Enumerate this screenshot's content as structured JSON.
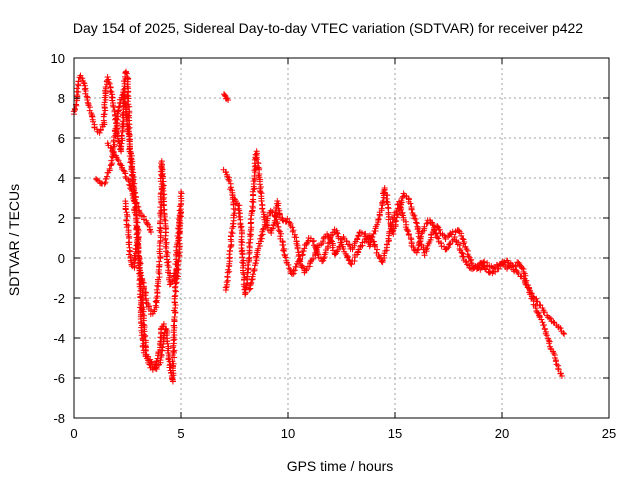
{
  "chart_data": {
    "type": "scatter",
    "title": "Day 154 of 2025, Sidereal Day-to-day VTEC variation (SDTVAR) for receiver p422",
    "xlabel": "GPS time / hours",
    "ylabel": "SDTVAR / TECUs",
    "xlim": [
      0,
      25
    ],
    "ylim": [
      -8,
      10
    ],
    "xticks": [
      0,
      5,
      10,
      15,
      20,
      25
    ],
    "yticks": [
      -8,
      -6,
      -4,
      -2,
      0,
      2,
      4,
      6,
      8,
      10
    ],
    "grid": true,
    "marker": "+",
    "color": "#ff0000",
    "series": [
      {
        "name": "SDTVAR",
        "trace": [
          [
            0.0,
            7.2
          ],
          [
            0.1,
            7.6
          ],
          [
            0.2,
            8.8
          ],
          [
            0.3,
            9.1
          ],
          [
            0.45,
            8.9
          ],
          [
            0.6,
            8.0
          ],
          [
            0.8,
            7.2
          ],
          [
            1.0,
            6.5
          ],
          [
            1.2,
            6.3
          ],
          [
            1.4,
            6.7
          ],
          [
            1.5,
            8.6
          ],
          [
            1.6,
            9.0
          ],
          [
            1.7,
            8.6
          ],
          [
            1.8,
            7.8
          ],
          [
            1.9,
            7.2
          ],
          [
            2.0,
            6.6
          ],
          [
            2.1,
            5.8
          ],
          [
            2.2,
            5.3
          ],
          [
            2.3,
            7.0
          ],
          [
            2.35,
            8.5
          ],
          [
            2.4,
            9.3
          ],
          [
            2.5,
            9.2
          ],
          [
            2.55,
            7.5
          ],
          [
            2.6,
            6.0
          ],
          [
            2.7,
            4.8
          ],
          [
            2.8,
            3.7
          ],
          [
            2.9,
            2.6
          ],
          [
            3.0,
            1.2
          ],
          [
            3.05,
            -0.5
          ],
          [
            3.1,
            -2.0
          ],
          [
            3.15,
            -3.2
          ],
          [
            3.25,
            -4.6
          ],
          [
            3.4,
            -5.0
          ],
          [
            3.55,
            -5.4
          ],
          [
            3.7,
            -5.6
          ],
          [
            3.85,
            -5.5
          ],
          [
            4.0,
            -5.3
          ],
          [
            4.1,
            -4.8
          ],
          [
            4.2,
            -4.0
          ],
          [
            4.3,
            -3.5
          ],
          [
            4.4,
            -4.5
          ],
          [
            4.5,
            -5.6
          ],
          [
            4.6,
            -6.2
          ],
          [
            4.65,
            -4.8
          ],
          [
            4.7,
            -3.0
          ],
          [
            4.75,
            -1.0
          ],
          [
            4.8,
            0.5
          ],
          [
            4.9,
            1.5
          ],
          [
            5.0,
            2.3
          ]
        ],
        "trace2": [
          [
            1.0,
            3.9
          ],
          [
            1.2,
            3.8
          ],
          [
            1.4,
            3.7
          ],
          [
            1.6,
            4.2
          ],
          [
            1.8,
            5.0
          ],
          [
            1.9,
            6.0
          ],
          [
            2.0,
            6.9
          ],
          [
            2.1,
            7.6
          ],
          [
            2.2,
            8.0
          ],
          [
            2.3,
            8.3
          ],
          [
            2.4,
            7.8
          ],
          [
            2.5,
            6.8
          ],
          [
            2.6,
            5.6
          ],
          [
            2.7,
            4.2
          ],
          [
            2.8,
            3.0
          ],
          [
            2.9,
            1.8
          ],
          [
            3.0,
            0.6
          ],
          [
            3.1,
            -0.6
          ],
          [
            3.2,
            -2.2
          ],
          [
            3.3,
            -3.8
          ],
          [
            3.4,
            -4.8
          ],
          [
            3.6,
            -5.3
          ],
          [
            3.8,
            -5.5
          ],
          [
            4.0,
            -4.6
          ],
          [
            4.1,
            -3.5
          ],
          [
            4.2,
            -3.3
          ]
        ],
        "trace3": [
          [
            1.6,
            5.7
          ],
          [
            1.8,
            5.3
          ],
          [
            2.0,
            5.0
          ],
          [
            2.2,
            4.6
          ],
          [
            2.4,
            4.2
          ],
          [
            2.6,
            3.6
          ],
          [
            2.8,
            3.0
          ],
          [
            3.0,
            2.5
          ],
          [
            3.2,
            2.1
          ],
          [
            3.4,
            1.8
          ],
          [
            3.5,
            1.5
          ],
          [
            3.6,
            1.3
          ]
        ],
        "trace4": [
          [
            2.4,
            2.8
          ],
          [
            2.5,
            1.6
          ],
          [
            2.6,
            0.2
          ],
          [
            2.7,
            -0.4
          ],
          [
            2.8,
            -0.5
          ],
          [
            2.9,
            0.5
          ],
          [
            3.0,
            1.0
          ]
        ],
        "trace5": [
          [
            3.2,
            -1.0
          ],
          [
            3.3,
            -1.6
          ],
          [
            3.4,
            -2.2
          ],
          [
            3.6,
            -2.8
          ],
          [
            3.8,
            -2.6
          ],
          [
            4.0,
            -0.5
          ],
          [
            4.05,
            2.0
          ],
          [
            4.1,
            4.8
          ],
          [
            4.2,
            3.0
          ],
          [
            4.3,
            0.8
          ],
          [
            4.4,
            -0.4
          ],
          [
            4.5,
            -1.3
          ],
          [
            4.6,
            -1.2
          ],
          [
            4.7,
            -0.8
          ],
          [
            4.8,
            -1.2
          ],
          [
            4.9,
            0.0
          ],
          [
            5.0,
            3.3
          ]
        ],
        "trace6": [
          [
            7.0,
            8.2
          ],
          [
            7.1,
            8.0
          ],
          [
            7.2,
            7.9
          ]
        ],
        "trace7": [
          [
            7.0,
            4.4
          ],
          [
            7.2,
            4.1
          ],
          [
            7.4,
            3.2
          ],
          [
            7.5,
            2.5
          ],
          [
            7.3,
            0.4
          ],
          [
            7.2,
            -0.9
          ],
          [
            7.1,
            -1.6
          ]
        ],
        "trace8": [
          [
            7.5,
            3.0
          ],
          [
            7.7,
            2.6
          ],
          [
            7.8,
            1.6
          ],
          [
            7.9,
            -0.4
          ],
          [
            8.0,
            -1.8
          ],
          [
            8.1,
            -1.2
          ],
          [
            8.2,
            0.6
          ],
          [
            8.3,
            2.0
          ],
          [
            8.4,
            3.5
          ],
          [
            8.5,
            5.3
          ],
          [
            8.6,
            4.8
          ],
          [
            8.7,
            3.6
          ],
          [
            8.8,
            2.5
          ],
          [
            9.0,
            1.6
          ],
          [
            9.2,
            1.3
          ],
          [
            9.4,
            1.8
          ],
          [
            9.5,
            2.8
          ],
          [
            9.6,
            2.2
          ],
          [
            9.8,
            1.8
          ],
          [
            10.0,
            1.9
          ],
          [
            10.2,
            1.5
          ],
          [
            10.4,
            0.8
          ],
          [
            10.6,
            -0.3
          ],
          [
            10.8,
            -0.7
          ],
          [
            11.0,
            -0.4
          ],
          [
            11.2,
            0.0
          ],
          [
            11.4,
            0.6
          ],
          [
            11.6,
            0.8
          ],
          [
            11.8,
            1.2
          ],
          [
            12.0,
            0.9
          ],
          [
            12.2,
            0.2
          ],
          [
            12.4,
            0.5
          ],
          [
            12.6,
            1.0
          ],
          [
            12.8,
            0.7
          ],
          [
            13.0,
            0.4
          ],
          [
            13.2,
            0.9
          ],
          [
            13.4,
            1.3
          ],
          [
            13.6,
            1.2
          ],
          [
            13.8,
            0.6
          ],
          [
            14.0,
            1.2
          ],
          [
            14.2,
            1.8
          ],
          [
            14.4,
            2.6
          ],
          [
            14.5,
            3.5
          ],
          [
            14.6,
            3.2
          ],
          [
            14.7,
            2.0
          ],
          [
            14.9,
            1.2
          ],
          [
            15.0,
            1.6
          ],
          [
            15.2,
            2.4
          ],
          [
            15.4,
            3.2
          ],
          [
            15.6,
            3.0
          ],
          [
            15.8,
            2.4
          ],
          [
            16.0,
            1.8
          ],
          [
            16.2,
            0.8
          ],
          [
            16.4,
            0.2
          ],
          [
            16.6,
            0.8
          ],
          [
            16.8,
            1.4
          ],
          [
            17.0,
            1.6
          ],
          [
            17.2,
            1.2
          ],
          [
            17.4,
            1.0
          ],
          [
            17.6,
            1.2
          ],
          [
            17.8,
            1.3
          ],
          [
            18.0,
            1.4
          ],
          [
            18.2,
            0.8
          ],
          [
            18.4,
            0.2
          ],
          [
            18.6,
            -0.3
          ],
          [
            18.8,
            -0.4
          ],
          [
            19.0,
            -0.6
          ],
          [
            19.2,
            -0.2
          ],
          [
            19.4,
            -0.4
          ],
          [
            19.6,
            -0.5
          ],
          [
            19.8,
            -0.3
          ],
          [
            20.0,
            -0.2
          ],
          [
            20.2,
            -0.5
          ],
          [
            20.4,
            -0.3
          ],
          [
            20.6,
            -0.4
          ],
          [
            20.8,
            -0.2
          ],
          [
            21.0,
            -0.6
          ],
          [
            21.2,
            -1.4
          ],
          [
            21.4,
            -2.0
          ],
          [
            21.6,
            -2.6
          ],
          [
            21.8,
            -3.0
          ],
          [
            22.0,
            -3.6
          ],
          [
            22.2,
            -4.2
          ],
          [
            22.4,
            -4.8
          ],
          [
            22.6,
            -5.4
          ],
          [
            22.8,
            -5.9
          ]
        ],
        "trace9": [
          [
            8.2,
            -1.6
          ],
          [
            8.4,
            -0.8
          ],
          [
            8.6,
            0.4
          ],
          [
            8.8,
            1.2
          ],
          [
            9.0,
            1.9
          ],
          [
            9.2,
            2.4
          ],
          [
            9.4,
            2.1
          ],
          [
            9.6,
            1.4
          ],
          [
            9.8,
            0.4
          ],
          [
            10.0,
            -0.4
          ],
          [
            10.2,
            -0.8
          ],
          [
            10.4,
            -0.4
          ],
          [
            10.6,
            0.0
          ],
          [
            10.8,
            0.6
          ],
          [
            11.0,
            1.0
          ],
          [
            11.2,
            0.8
          ],
          [
            11.4,
            0.2
          ],
          [
            11.6,
            -0.2
          ],
          [
            11.8,
            0.4
          ],
          [
            12.0,
            1.0
          ],
          [
            12.2,
            1.4
          ],
          [
            12.4,
            1.0
          ],
          [
            12.6,
            0.4
          ],
          [
            12.8,
            0.0
          ],
          [
            13.0,
            -0.3
          ],
          [
            13.2,
            0.2
          ],
          [
            13.4,
            0.6
          ],
          [
            13.6,
            0.9
          ],
          [
            13.8,
            1.1
          ],
          [
            14.0,
            0.8
          ],
          [
            14.2,
            0.2
          ],
          [
            14.4,
            -0.2
          ],
          [
            14.6,
            0.4
          ],
          [
            14.8,
            1.6
          ],
          [
            15.0,
            2.2
          ],
          [
            15.2,
            2.8
          ],
          [
            15.4,
            2.0
          ],
          [
            15.6,
            1.4
          ],
          [
            15.8,
            0.6
          ],
          [
            16.0,
            0.3
          ],
          [
            16.2,
            1.0
          ],
          [
            16.4,
            1.6
          ],
          [
            16.6,
            1.9
          ],
          [
            16.8,
            1.6
          ],
          [
            17.0,
            1.0
          ],
          [
            17.2,
            0.6
          ],
          [
            17.4,
            0.4
          ],
          [
            17.6,
            0.8
          ],
          [
            17.8,
            1.0
          ],
          [
            18.0,
            0.6
          ],
          [
            18.2,
            0.0
          ],
          [
            18.4,
            -0.3
          ],
          [
            18.6,
            -0.6
          ],
          [
            18.8,
            -0.5
          ],
          [
            19.0,
            -0.2
          ],
          [
            19.4,
            -0.8
          ],
          [
            19.8,
            -0.6
          ],
          [
            20.2,
            -0.1
          ],
          [
            20.6,
            -0.6
          ],
          [
            21.0,
            -1.0
          ],
          [
            21.4,
            -1.8
          ],
          [
            21.8,
            -2.4
          ],
          [
            22.2,
            -3.0
          ],
          [
            22.6,
            -3.4
          ],
          [
            22.9,
            -3.8
          ]
        ]
      }
    ]
  }
}
